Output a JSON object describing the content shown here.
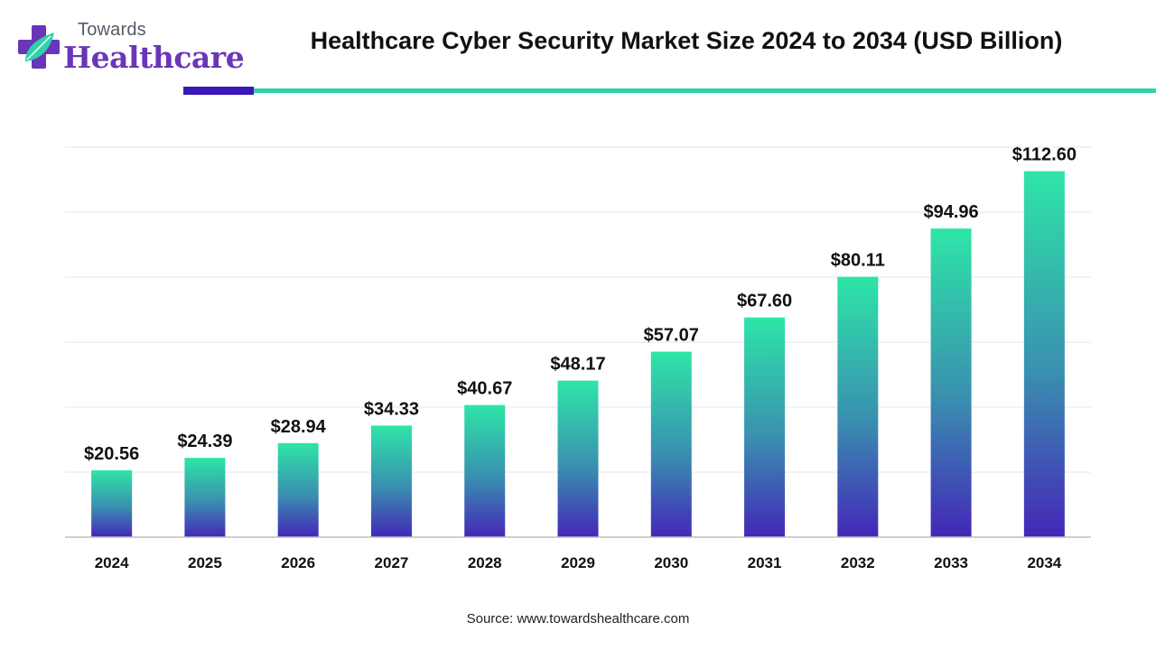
{
  "header": {
    "brand_top": "Towards",
    "brand_main": "Healthcare",
    "logo_icon": "medical-cross-leaf",
    "title": "Healthcare Cyber Security Market Size 2024 to 2034 (USD Billion)"
  },
  "footer": {
    "source": "Source: www.towardshealthcare.com"
  },
  "colors": {
    "bar_top": "#2ee5a8",
    "bar_mid": "#3a8fb0",
    "bar_bottom": "#4327b8",
    "accent_purple": "#3a19b5",
    "accent_green": "#2ed4a8"
  },
  "chart_data": {
    "type": "bar",
    "title": "Healthcare Cyber Security Market Size 2024 to 2034 (USD Billion)",
    "categories": [
      "2024",
      "2025",
      "2026",
      "2027",
      "2028",
      "2029",
      "2030",
      "2031",
      "2032",
      "2033",
      "2034"
    ],
    "values": [
      20.56,
      24.39,
      28.94,
      34.33,
      40.67,
      48.17,
      57.07,
      67.6,
      80.11,
      94.96,
      112.6
    ],
    "labels": [
      "$20.56",
      "$24.39",
      "$28.94",
      "$34.33",
      "$40.67",
      "$48.17",
      "$57.07",
      "$67.60",
      "$80.11",
      "$94.96",
      "$112.60"
    ],
    "xlabel": "",
    "ylabel": "",
    "ylim": [
      0,
      120
    ],
    "grid": true,
    "legend": "none"
  }
}
